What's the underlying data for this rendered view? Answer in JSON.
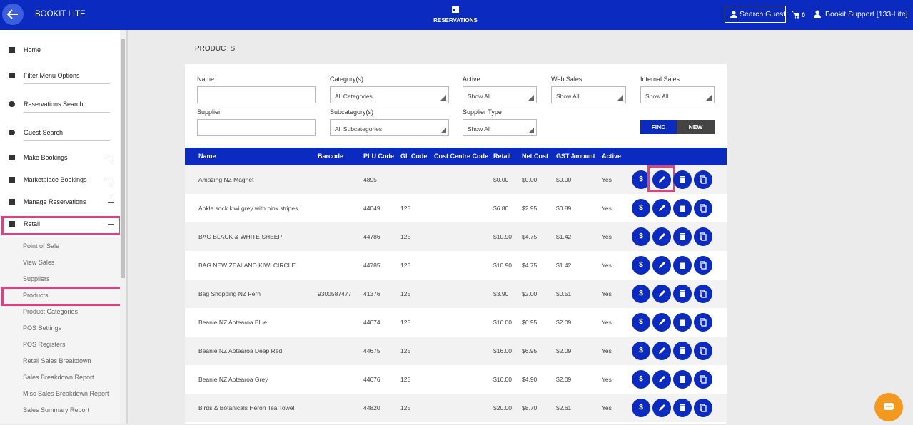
{
  "topbar": {
    "app_name": "BOOKIT LITE",
    "section": "RESERVATIONS",
    "search_button": "Search Guest",
    "cart_count": "0",
    "user": "Bookit Support [133-Lite]"
  },
  "sidebar": {
    "menu": [
      {
        "label": "Home"
      },
      {
        "label": "Filter Menu Options"
      },
      {
        "label": "Reservations Search"
      },
      {
        "label": "Guest Search"
      },
      {
        "label": "Make Bookings",
        "expandable": true
      },
      {
        "label": "Marketplace Bookings",
        "expandable": true
      },
      {
        "label": "Manage Reservations",
        "expandable": true
      },
      {
        "label": "Retail",
        "expandable": true,
        "expanded": true,
        "highlighted": true
      }
    ],
    "submenu": [
      {
        "label": "Point of Sale"
      },
      {
        "label": "View Sales"
      },
      {
        "label": "Suppliers"
      },
      {
        "label": "Products",
        "highlighted": true
      },
      {
        "label": "Product Categories"
      },
      {
        "label": "POS Settings"
      },
      {
        "label": "POS Registers"
      },
      {
        "label": "Retail Sales Breakdown"
      },
      {
        "label": "Sales Breakdown Report"
      },
      {
        "label": "Misc Sales Breakdown Report"
      },
      {
        "label": "Sales Summary Report"
      }
    ]
  },
  "page": {
    "title": "PRODUCTS"
  },
  "filters": {
    "fields": [
      {
        "label": "Name"
      },
      {
        "label": "Category(s)",
        "value": "All Categories"
      },
      {
        "label": "Active",
        "value": "Show All"
      },
      {
        "label": "Web Sales",
        "value": "Show All"
      },
      {
        "label": "Internal Sales",
        "value": "Show All"
      },
      {
        "label": "Supplier"
      },
      {
        "label": "Subcategory(s)",
        "value": "All Subcategories"
      },
      {
        "label": "Supplier Type",
        "value": "Show All"
      }
    ],
    "buttons": [
      "FIND",
      "NEW"
    ]
  },
  "table": {
    "columns": [
      "Name",
      "Barcode",
      "PLU Code",
      "GL Code",
      "Cost Centre Code",
      "Retail",
      "Net Cost",
      "GST Amount",
      "Active"
    ],
    "price_icon": "$",
    "rows": [
      {
        "name": "Amazing NZ Magnet",
        "plu": "4895",
        "retail": "$0.00",
        "net_cost": "$0.00",
        "gst": "$0.00",
        "active": "Yes",
        "highlighted_edit": true
      },
      {
        "name": "Ankle sock kiwi grey with pink stripes",
        "plu": "44049",
        "gl": "125",
        "retail": "$6.80",
        "net_cost": "$2.95",
        "gst": "$0.89",
        "active": "Yes"
      },
      {
        "name": "BAG BLACK & WHITE SHEEP",
        "plu": "44786",
        "gl": "125",
        "retail": "$10.90",
        "net_cost": "$4.75",
        "gst": "$1.42",
        "active": "Yes"
      },
      {
        "name": "BAG NEW ZEALAND KIWI CIRCLE",
        "plu": "44785",
        "gl": "125",
        "retail": "$10.90",
        "net_cost": "$4.75",
        "gst": "$1.42",
        "active": "Yes"
      },
      {
        "name": "Bag Shopping NZ Fern",
        "barcode": "9300587477",
        "plu": "41376",
        "gl": "125",
        "retail": "$3.90",
        "net_cost": "$2.00",
        "gst": "$0.51",
        "active": "Yes"
      },
      {
        "name": "Beanie NZ Aotearoa Blue",
        "plu": "44674",
        "gl": "125",
        "retail": "$16.00",
        "net_cost": "$6.95",
        "gst": "$2.09",
        "active": "Yes"
      },
      {
        "name": "Beanie NZ Aotearoa Deep Red",
        "plu": "44675",
        "gl": "125",
        "retail": "$16.00",
        "net_cost": "$6.95",
        "gst": "$2.09",
        "active": "Yes"
      },
      {
        "name": "Beanie NZ Aotearoa Grey",
        "plu": "44676",
        "gl": "125",
        "retail": "$16.00",
        "net_cost": "$4.90",
        "gst": "$2.09",
        "active": "Yes"
      },
      {
        "name": "Birds & Botanicals Heron Tea Towel",
        "plu": "44820",
        "gl": "125",
        "retail": "$20.00",
        "net_cost": "$8.70",
        "gst": "$2.61",
        "active": "Yes"
      }
    ]
  }
}
